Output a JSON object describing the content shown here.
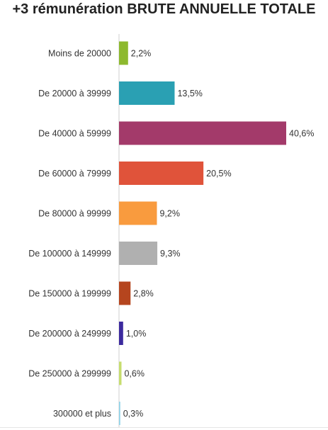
{
  "chart_data": {
    "type": "bar",
    "orientation": "horizontal",
    "title": "+3 rémunération BRUTE ANNUELLE TOTALE",
    "categories": [
      "Moins de 20000",
      "De 20000 à 39999",
      "De 40000 à 59999",
      "De 60000 à 79999",
      "De 80000 à 99999",
      "De 100000 à 149999",
      "De 150000 à 199999",
      "De 200000 à 249999",
      "De 250000 à 299999",
      "300000 et plus"
    ],
    "values": [
      2.2,
      13.5,
      40.6,
      20.5,
      9.2,
      9.3,
      2.8,
      1.0,
      0.6,
      0.3
    ],
    "value_labels": [
      "2,2%",
      "13,5%",
      "40,6%",
      "20,5%",
      "9,2%",
      "9,3%",
      "2,8%",
      "1,0%",
      "0,6%",
      "0,3%"
    ],
    "colors": [
      "#8db92e",
      "#2aa0b3",
      "#a33a6a",
      "#e0533a",
      "#f99b3e",
      "#b0b0b0",
      "#b5451e",
      "#3c2a9e",
      "#c6dd6e",
      "#8fd3e8"
    ],
    "xlim": [
      0,
      40.6
    ],
    "grid": false,
    "legend": "none"
  }
}
